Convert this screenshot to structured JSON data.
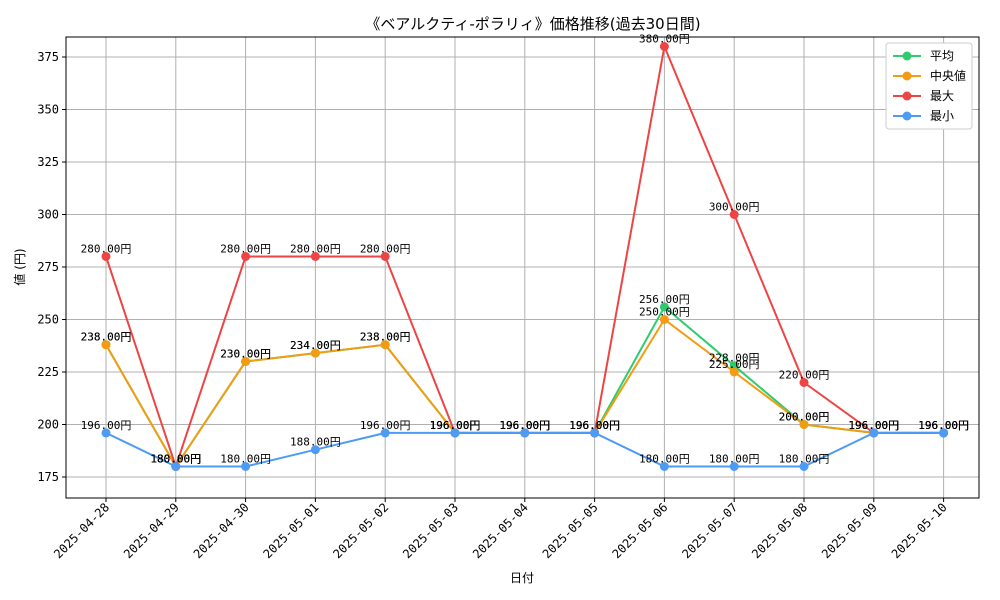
{
  "chart_data": {
    "type": "line",
    "title": "《ベアルクティ-ポラリィ》価格推移(過去30日間)",
    "xlabel": "日付",
    "ylabel": "値 (円)",
    "categories": [
      "2025-04-28",
      "2025-04-29",
      "2025-04-30",
      "2025-05-01",
      "2025-05-02",
      "2025-05-03",
      "2025-05-04",
      "2025-05-05",
      "2025-05-06",
      "2025-05-07",
      "2025-05-08",
      "2025-05-09",
      "2025-05-10"
    ],
    "ylim": [
      170,
      390
    ],
    "yticks": [
      175,
      200,
      225,
      250,
      275,
      300,
      325,
      350,
      375
    ],
    "grid": true,
    "legend_position": "top-right",
    "value_suffix": "円",
    "series": [
      {
        "name": "平均",
        "color": "#2ecc71",
        "values": [
          238,
          180,
          230,
          234,
          238,
          196,
          196,
          196,
          256,
          228,
          200,
          196,
          196
        ]
      },
      {
        "name": "中央値",
        "color": "#f39c12",
        "values": [
          238,
          180,
          230,
          234,
          238,
          196,
          196,
          196,
          250,
          225,
          200,
          196,
          196
        ]
      },
      {
        "name": "最大",
        "color": "#ef4444",
        "values": [
          280,
          180,
          280,
          280,
          280,
          196,
          196,
          196,
          380,
          300,
          220,
          196,
          196
        ]
      },
      {
        "name": "最小",
        "color": "#4d9bf5",
        "values": [
          196,
          180,
          180,
          188,
          196,
          196,
          196,
          196,
          180,
          180,
          180,
          196,
          196
        ]
      }
    ]
  }
}
